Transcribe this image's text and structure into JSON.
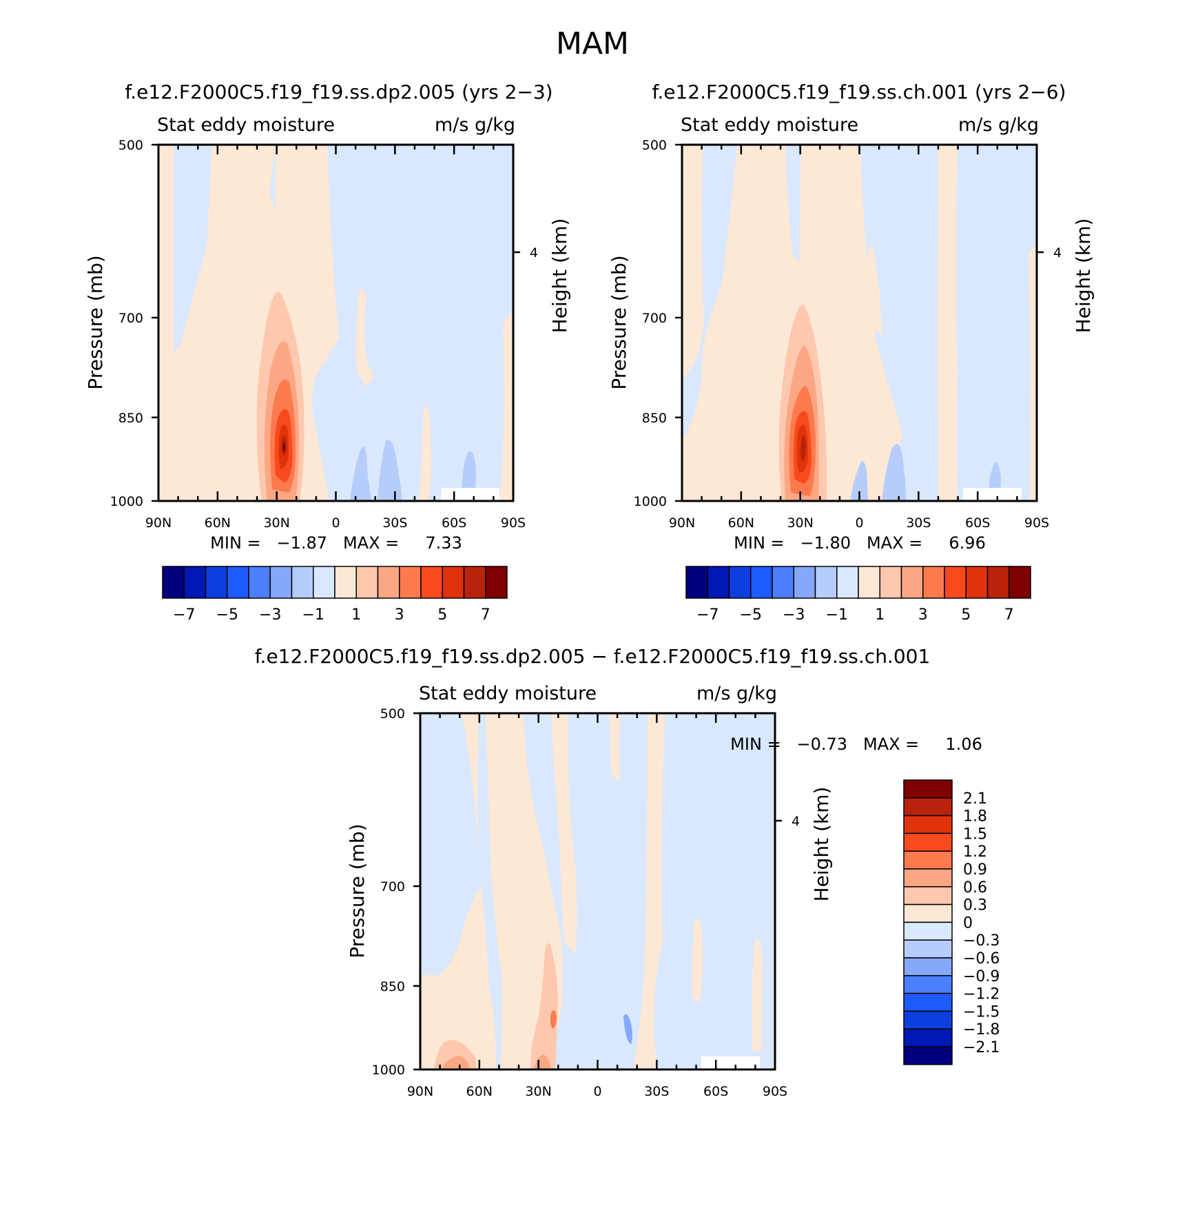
{
  "figure": {
    "title": "MAM",
    "labelbar_colors": [
      "#00007f",
      "#0018b3",
      "#0c3fdf",
      "#1d5bff",
      "#4b7ffb",
      "#86a8fb",
      "#b6cdfc",
      "#d9e8fd",
      "#fde8d6",
      "#fdc8ae",
      "#fca784",
      "#fd7a4f",
      "#f94a1e",
      "#e0330b",
      "#b9230b",
      "#7f0000"
    ],
    "icon_names": []
  },
  "panels": [
    {
      "title": "f.e12.F2000C5.f19_f19.ss.dp2.005 (yrs 2−3)",
      "left_label": "Stat eddy moisture",
      "right_label": "m/s  g/kg",
      "ylabel": "Pressure (mb)",
      "ylabel_right": "Height (km)",
      "min_text": "MIN =   −1.87   MAX =     7.33",
      "cb_labels": [
        "−7",
        "−5",
        "−3",
        "−1",
        "1",
        "3",
        "5",
        "7"
      ]
    },
    {
      "title": "f.e12.F2000C5.f19_f19.ss.ch.001 (yrs 2−6)",
      "left_label": "Stat eddy moisture",
      "right_label": "m/s  g/kg",
      "ylabel": "Pressure (mb)",
      "ylabel_right": "Height (km)",
      "min_text": "MIN =   −1.80   MAX =     6.96",
      "cb_labels": [
        "−7",
        "−5",
        "−3",
        "−1",
        "1",
        "3",
        "5",
        "7"
      ]
    },
    {
      "title": "f.e12.F2000C5.f19_f19.ss.dp2.005 − f.e12.F2000C5.f19_f19.ss.ch.001",
      "left_label": "Stat eddy moisture",
      "right_label": "m/s  g/kg",
      "ylabel": "Pressure (mb)",
      "ylabel_right": "Height (km)",
      "min_text": "MIN =   −0.73   MAX =     1.06",
      "cb_labels": [
        "2.1",
        "1.8",
        "1.5",
        "1.2",
        "0.9",
        "0.6",
        "0.3",
        "0",
        "−0.3",
        "−0.6",
        "−0.9",
        "−1.2",
        "−1.5",
        "−1.8",
        "−2.1"
      ]
    }
  ],
  "chart_data": [
    {
      "type": "heatmap",
      "title": "f.e12.F2000C5.f19_f19.ss.dp2.005 (yrs 2−3)",
      "xlabel": "",
      "ylabel": "Pressure (mb)",
      "y2label": "Height (km)",
      "x_ticks": [
        "90N",
        "60N",
        "30N",
        "0",
        "30S",
        "60S",
        "90S"
      ],
      "y_ticks": [
        "500",
        "700",
        "850",
        "1000"
      ],
      "y2_ticks": [
        "4"
      ],
      "ylim": [
        1000,
        500
      ],
      "contour_levels": [
        -7,
        -6,
        -5,
        -4,
        -3,
        -2,
        -1,
        0,
        1,
        2,
        3,
        4,
        5,
        6,
        7
      ],
      "min": -1.87,
      "max": 7.33,
      "max_location": {
        "lat": "20N",
        "pressure_mb": 930
      }
    },
    {
      "type": "heatmap",
      "title": "f.e12.F2000C5.f19_f19.ss.ch.001 (yrs 2−6)",
      "xlabel": "",
      "ylabel": "Pressure (mb)",
      "y2label": "Height (km)",
      "x_ticks": [
        "90N",
        "60N",
        "30N",
        "0",
        "30S",
        "60S",
        "90S"
      ],
      "y_ticks": [
        "500",
        "700",
        "850",
        "1000"
      ],
      "y2_ticks": [
        "4"
      ],
      "ylim": [
        1000,
        500
      ],
      "contour_levels": [
        -7,
        -6,
        -5,
        -4,
        -3,
        -2,
        -1,
        0,
        1,
        2,
        3,
        4,
        5,
        6,
        7
      ],
      "min": -1.8,
      "max": 6.96,
      "max_location": {
        "lat": "20N",
        "pressure_mb": 930
      }
    },
    {
      "type": "heatmap",
      "title": "f.e12.F2000C5.f19_f19.ss.dp2.005 − f.e12.F2000C5.f19_f19.ss.ch.001",
      "xlabel": "",
      "ylabel": "Pressure (mb)",
      "y2label": "Height (km)",
      "x_ticks": [
        "90N",
        "60N",
        "30N",
        "0",
        "30S",
        "60S",
        "90S"
      ],
      "y_ticks": [
        "500",
        "700",
        "850",
        "1000"
      ],
      "y2_ticks": [
        "4"
      ],
      "ylim": [
        1000,
        500
      ],
      "contour_levels": [
        -2.1,
        -1.8,
        -1.5,
        -1.2,
        -0.9,
        -0.6,
        -0.3,
        0,
        0.3,
        0.6,
        0.9,
        1.2,
        1.5,
        1.8,
        2.1
      ],
      "min": -0.73,
      "max": 1.06
    }
  ]
}
